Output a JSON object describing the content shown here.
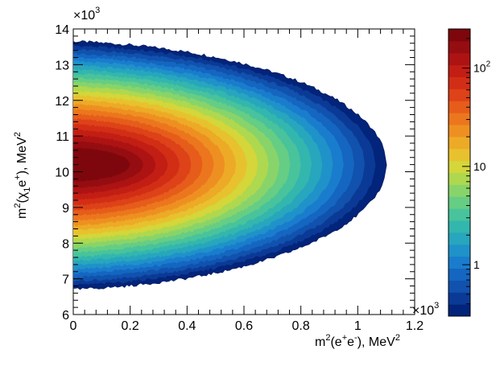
{
  "chart_data": {
    "type": "heatmap",
    "title": "",
    "xlabel_main": "m",
    "xlabel_sup": "2",
    "xlabel_rest": "(e",
    "xlabel_sup2": "+",
    "xlabel_rest2": "e",
    "xlabel_sup3": "-",
    "xlabel_rest3": "), MeV",
    "xlabel_sup4": "2",
    "ylabel_main": "m",
    "ylabel_sup": "2",
    "ylabel_rest": "(χ",
    "ylabel_sub": "1",
    "ylabel_rest2": "e",
    "ylabel_sup2": "+",
    "ylabel_rest3": "), MeV",
    "ylabel_sup3": "2",
    "x_multiplier_base": "×10",
    "x_multiplier_exp": "3",
    "y_multiplier_base": "×10",
    "y_multiplier_exp": "3",
    "xlim": [
      0,
      1.2
    ],
    "ylim": [
      6,
      14
    ],
    "x_ticks": [
      "0",
      "0.2",
      "0.4",
      "0.6",
      "0.8",
      "1",
      "1.2"
    ],
    "y_ticks": [
      "6",
      "7",
      "8",
      "9",
      "10",
      "11",
      "12",
      "13",
      "14"
    ],
    "colorbar": {
      "scale": "log",
      "range": [
        0.3,
        250
      ],
      "tick_labels": [
        {
          "value": 1,
          "base": "1",
          "exp": ""
        },
        {
          "value": 10,
          "base": "10",
          "exp": ""
        },
        {
          "value": 100,
          "base": "10",
          "exp": "2"
        }
      ],
      "colors": [
        "#02247a",
        "#0b3a96",
        "#1052ad",
        "#1466c0",
        "#1a7ccd",
        "#1f92c9",
        "#27a6bd",
        "#33b6ad",
        "#48c39b",
        "#65cd84",
        "#88d46a",
        "#aed84f",
        "#d4d63a",
        "#e8c12e",
        "#edaa26",
        "#ee9021",
        "#ec761d",
        "#e65c1a",
        "#dd4218",
        "#d22e16",
        "#c21e14",
        "#ad1313",
        "#950d10",
        "#7d070c"
      ]
    },
    "density_shape": {
      "description": "Dalitz-like region: densest near x=0, y≈10.3; tapering to tip at x≈1.1, y≈9.8",
      "boundary_x_max": 1.1,
      "y_center": 10.2,
      "y_halfwidth_at_x0": 3.2
    }
  }
}
